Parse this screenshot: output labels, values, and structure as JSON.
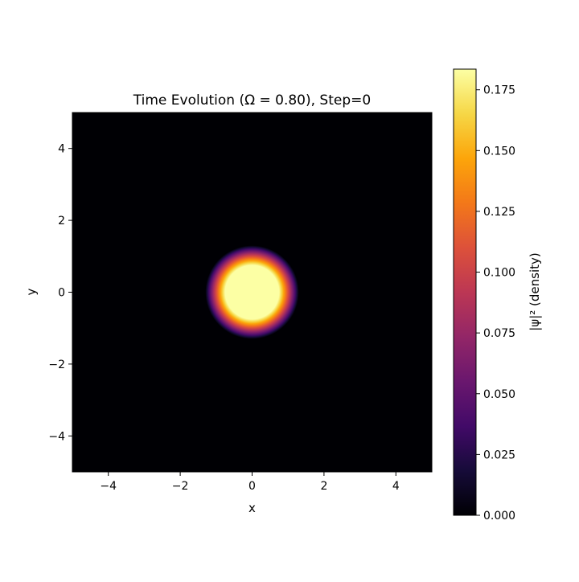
{
  "chart_data": {
    "type": "heatmap",
    "title": "Time Evolution (Ω = 0.80), Step=0",
    "xlabel": "x",
    "ylabel": "y",
    "xlim": [
      -5,
      5
    ],
    "ylim": [
      -5,
      5
    ],
    "x_ticks": [
      -4,
      -2,
      0,
      2,
      4
    ],
    "y_ticks": [
      -4,
      -2,
      0,
      2,
      4
    ],
    "x_tick_labels": [
      "−4",
      "−2",
      "0",
      "2",
      "4"
    ],
    "y_tick_labels": [
      "−4",
      "−2",
      "0",
      "2",
      "4"
    ],
    "colormap": "inferno",
    "colorbar": {
      "label": "|ψ|² (density)",
      "range": [
        0,
        0.1835
      ],
      "ticks": [
        0,
        0.025,
        0.05,
        0.075,
        0.1,
        0.125,
        0.15,
        0.175
      ],
      "tick_labels": [
        "0.000",
        "0.025",
        "0.050",
        "0.075",
        "0.100",
        "0.125",
        "0.150",
        "0.175"
      ]
    },
    "density_field": {
      "center": [
        0,
        0
      ],
      "plateau_radius": 0.75,
      "falloff_radius": 1.3,
      "peak": 0.1835
    },
    "grid": false,
    "background_color": "#000004"
  }
}
